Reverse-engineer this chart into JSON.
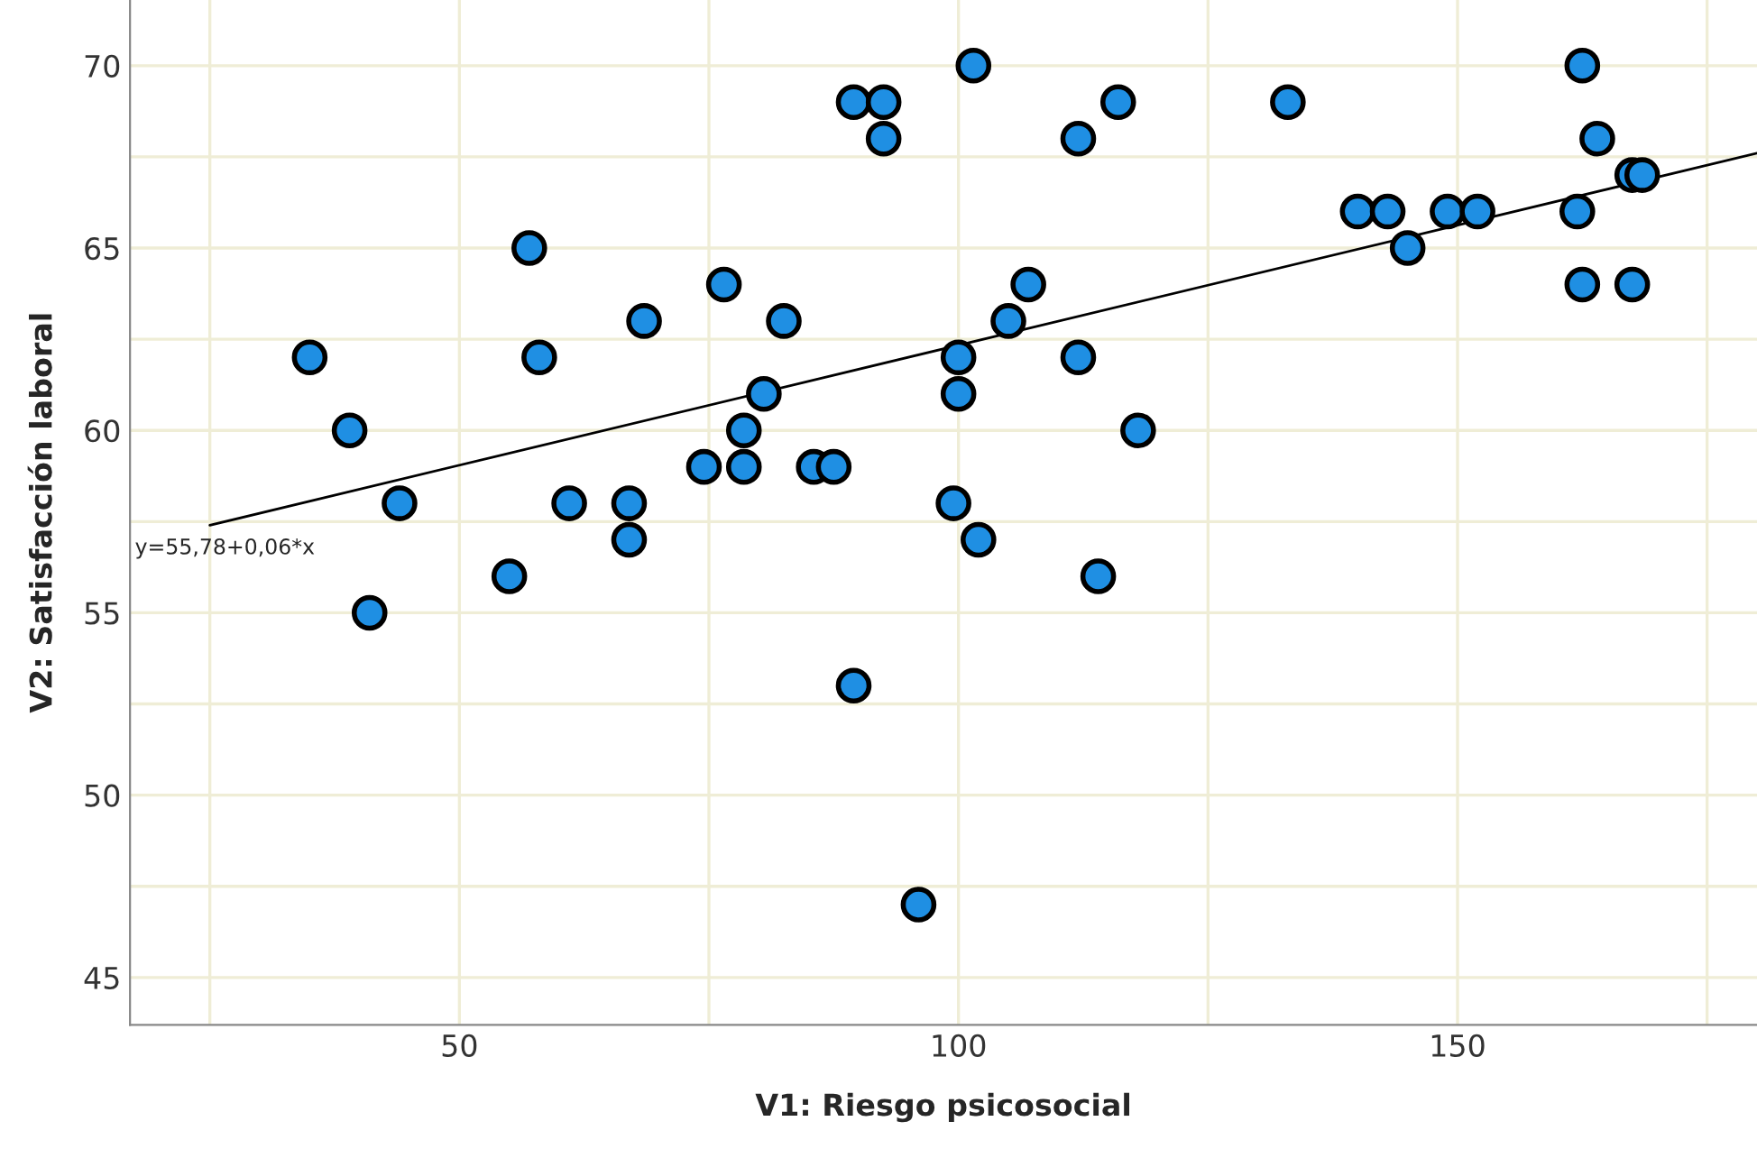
{
  "chart_data": {
    "type": "scatter",
    "xlabel": "V1: Riesgo psicosocial",
    "ylabel": "V2: Satisfacción laboral",
    "xlim": [
      17,
      180
    ],
    "ylim": [
      43.7,
      71.8
    ],
    "xticks": [
      {
        "value": 25,
        "label": null
      },
      50,
      {
        "value": 75,
        "label": null
      },
      100,
      {
        "value": 125,
        "label": null
      },
      150,
      {
        "value": 175,
        "label": null
      }
    ],
    "yticks": [
      45,
      {
        "value": 47.5,
        "label": null
      },
      50,
      {
        "value": 52.5,
        "label": null
      },
      55,
      {
        "value": 57.5,
        "label": null
      },
      60,
      {
        "value": 62.5,
        "label": null
      },
      65,
      {
        "value": 67.5,
        "label": null
      },
      70
    ],
    "grid": true,
    "marker": "circle",
    "series": [
      {
        "color": "#1f8fe3",
        "x": [
          35,
          39,
          41,
          44,
          55,
          57,
          58,
          61,
          67,
          67,
          68.5,
          74.5,
          76.5,
          78.5,
          78.5,
          80.5,
          82.5,
          85.5,
          87.5,
          89.5,
          89.5,
          92.5,
          92.5,
          96,
          99.5,
          100,
          100,
          101.5,
          102,
          105,
          107,
          112,
          112,
          114,
          116,
          118,
          133,
          140,
          143,
          145,
          149,
          152,
          162,
          162.5,
          162.5,
          164,
          167.5,
          167.5,
          168.5
        ],
        "values": [
          62,
          60,
          55,
          58,
          56,
          65,
          62,
          58,
          58,
          57,
          63,
          59,
          64,
          60,
          59,
          61,
          63,
          59,
          59,
          69,
          53,
          69,
          68,
          47,
          58,
          62,
          61,
          70,
          57,
          63,
          64,
          68,
          62,
          56,
          69,
          60,
          69,
          66,
          66,
          65,
          66,
          66,
          66,
          70,
          64,
          68,
          67,
          64,
          67
        ]
      },
      {
        "type": "line",
        "color": "#000000",
        "marker": "none",
        "x": [
          25,
          180
        ],
        "values": [
          57.4,
          67.6
        ]
      }
    ],
    "annotations": [
      "y=55,78+0,06*x"
    ]
  }
}
